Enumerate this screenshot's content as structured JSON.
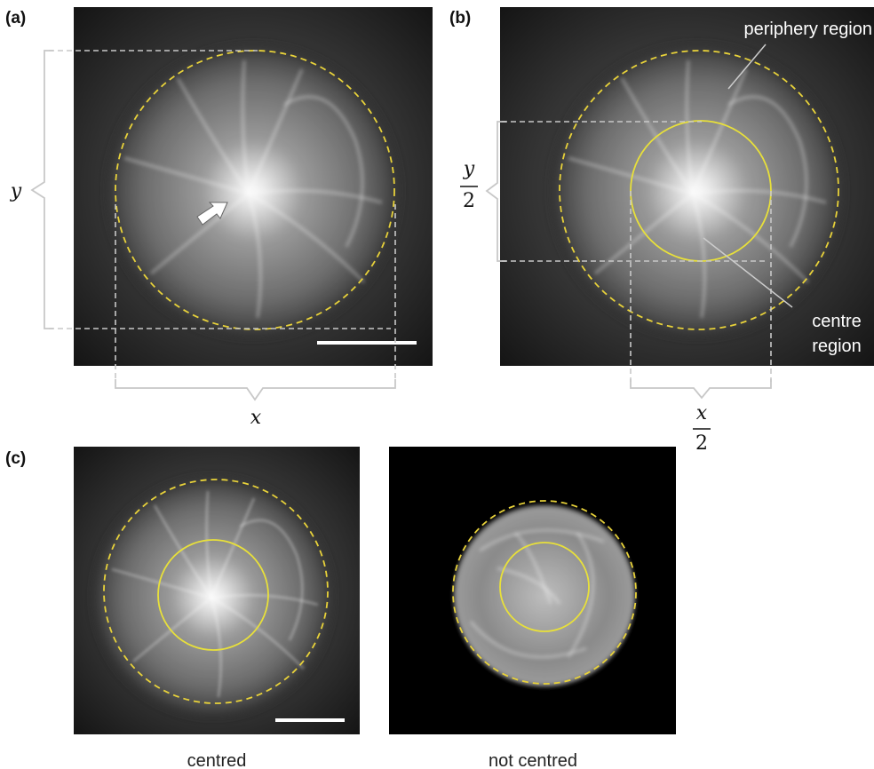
{
  "panel_a": {
    "label": "(a)",
    "y_label": "y",
    "x_label": "x"
  },
  "panel_b": {
    "label": "(b)",
    "y_label": {
      "numerator": "y",
      "denominator": "2"
    },
    "x_label": {
      "numerator": "x",
      "denominator": "2"
    },
    "periphery_label": "periphery region",
    "centre_label": [
      "centre",
      "region"
    ]
  },
  "panel_c": {
    "label": "(c)",
    "captions": [
      "centred",
      "not centred"
    ]
  }
}
